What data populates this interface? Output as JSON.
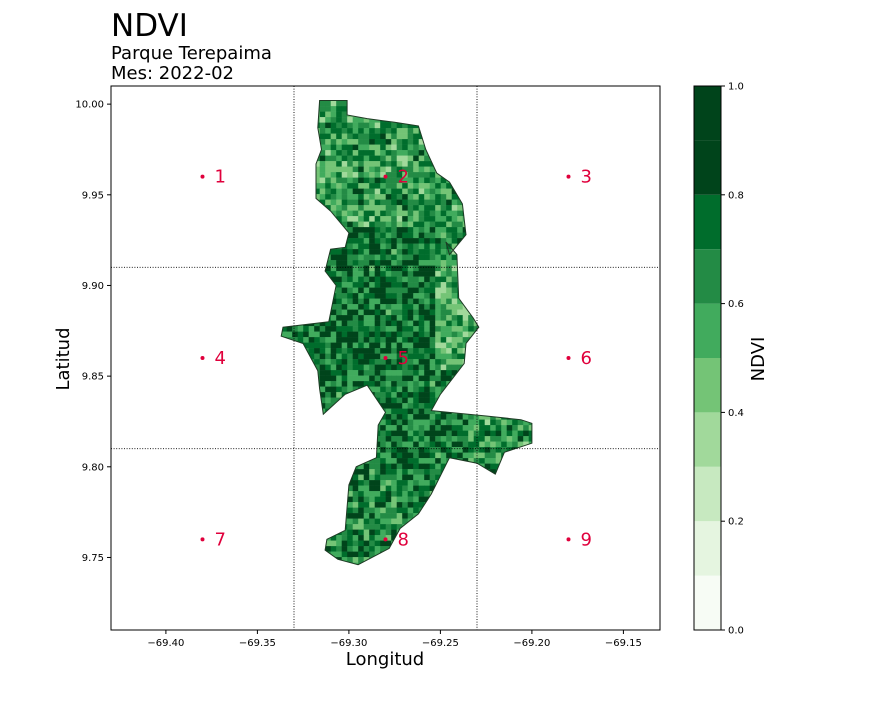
{
  "chart_data": {
    "type": "heatmap",
    "title": "NDVI",
    "subtitle": "Parque Terepaima",
    "subtitle2": "Mes: 2022-02",
    "xlabel": "Longitud",
    "ylabel": "Latitud",
    "xlim": [
      -69.43,
      -69.13
    ],
    "ylim": [
      9.71,
      10.01
    ],
    "xticks": [
      -69.4,
      -69.35,
      -69.3,
      -69.25,
      -69.2,
      -69.15
    ],
    "xtick_labels": [
      "−69.40",
      "−69.35",
      "−69.30",
      "−69.25",
      "−69.20",
      "−69.15"
    ],
    "yticks": [
      10.0,
      9.95,
      9.9,
      9.85,
      9.8,
      9.75
    ],
    "ytick_labels": [
      "10.00",
      "9.95",
      "9.90",
      "9.85",
      "9.80",
      "9.75"
    ],
    "grid_lines": {
      "x": [
        -69.33,
        -69.23
      ],
      "y": [
        9.91,
        9.81
      ]
    },
    "cell_points": [
      {
        "label": "1",
        "lon": -69.38,
        "lat": 9.96
      },
      {
        "label": "2",
        "lon": -69.28,
        "lat": 9.96
      },
      {
        "label": "3",
        "lon": -69.18,
        "lat": 9.96
      },
      {
        "label": "4",
        "lon": -69.38,
        "lat": 9.86
      },
      {
        "label": "5",
        "lon": -69.28,
        "lat": 9.86
      },
      {
        "label": "6",
        "lon": -69.18,
        "lat": 9.86
      },
      {
        "label": "7",
        "lon": -69.38,
        "lat": 9.76
      },
      {
        "label": "8",
        "lon": -69.28,
        "lat": 9.76
      },
      {
        "label": "9",
        "lon": -69.18,
        "lat": 9.76
      }
    ],
    "park_outline": [
      [
        -69.316,
        10.002
      ],
      [
        -69.301,
        10.002
      ],
      [
        -69.301,
        9.994
      ],
      [
        -69.29,
        9.992
      ],
      [
        -69.275,
        9.99
      ],
      [
        -69.262,
        9.988
      ],
      [
        -69.258,
        9.975
      ],
      [
        -69.252,
        9.962
      ],
      [
        -69.245,
        9.957
      ],
      [
        -69.238,
        9.945
      ],
      [
        -69.236,
        9.928
      ],
      [
        -69.245,
        9.917
      ],
      [
        -69.247,
        9.924
      ],
      [
        -69.241,
        9.917
      ],
      [
        -69.24,
        9.893
      ],
      [
        -69.232,
        9.882
      ],
      [
        -69.229,
        9.877
      ],
      [
        -69.236,
        9.868
      ],
      [
        -69.237,
        9.857
      ],
      [
        -69.25,
        9.84
      ],
      [
        -69.255,
        9.831
      ],
      [
        -69.225,
        9.828
      ],
      [
        -69.206,
        9.826
      ],
      [
        -69.2,
        9.824
      ],
      [
        -69.2,
        9.813
      ],
      [
        -69.215,
        9.808
      ],
      [
        -69.22,
        9.796
      ],
      [
        -69.23,
        9.802
      ],
      [
        -69.245,
        9.805
      ],
      [
        -69.255,
        9.785
      ],
      [
        -69.262,
        9.774
      ],
      [
        -69.272,
        9.766
      ],
      [
        -69.278,
        9.755
      ],
      [
        -69.295,
        9.746
      ],
      [
        -69.306,
        9.749
      ],
      [
        -69.313,
        9.754
      ],
      [
        -69.312,
        9.76
      ],
      [
        -69.302,
        9.765
      ],
      [
        -69.3,
        9.79
      ],
      [
        -69.296,
        9.8
      ],
      [
        -69.285,
        9.805
      ],
      [
        -69.284,
        9.823
      ],
      [
        -69.28,
        9.83
      ],
      [
        -69.29,
        9.845
      ],
      [
        -69.302,
        9.84
      ],
      [
        -69.314,
        9.829
      ],
      [
        -69.316,
        9.843
      ],
      [
        -69.317,
        9.853
      ],
      [
        -69.325,
        9.868
      ],
      [
        -69.337,
        9.872
      ],
      [
        -69.336,
        9.877
      ],
      [
        -69.311,
        9.88
      ],
      [
        -69.307,
        9.9
      ],
      [
        -69.313,
        9.908
      ],
      [
        -69.31,
        9.92
      ],
      [
        -69.302,
        9.921
      ],
      [
        -69.3,
        9.929
      ],
      [
        -69.31,
        9.941
      ],
      [
        -69.318,
        9.948
      ],
      [
        -69.318,
        9.967
      ],
      [
        -69.315,
        9.975
      ],
      [
        -69.317,
        9.987
      ],
      [
        -69.316,
        10.002
      ]
    ],
    "colorbar": {
      "label": "NDVI",
      "range": [
        0.0,
        1.0
      ],
      "ticks": [
        0.0,
        0.2,
        0.4,
        0.6,
        0.8,
        1.0
      ],
      "tick_labels": [
        "0.0",
        "0.2",
        "0.4",
        "0.6",
        "0.8",
        "1.0"
      ],
      "levels": [
        0.0,
        0.1,
        0.2,
        0.3,
        0.4,
        0.5,
        0.6,
        0.7,
        0.8,
        0.9,
        1.0
      ],
      "colors": [
        "#f7fcf5",
        "#e5f5e0",
        "#c7e9c0",
        "#a1d99b",
        "#74c476",
        "#41ab5d",
        "#238b45",
        "#006d2c",
        "#00441b",
        "#00441b"
      ]
    },
    "colormap": "Greens",
    "point_color": "#e0003c",
    "grid": "dotted"
  }
}
